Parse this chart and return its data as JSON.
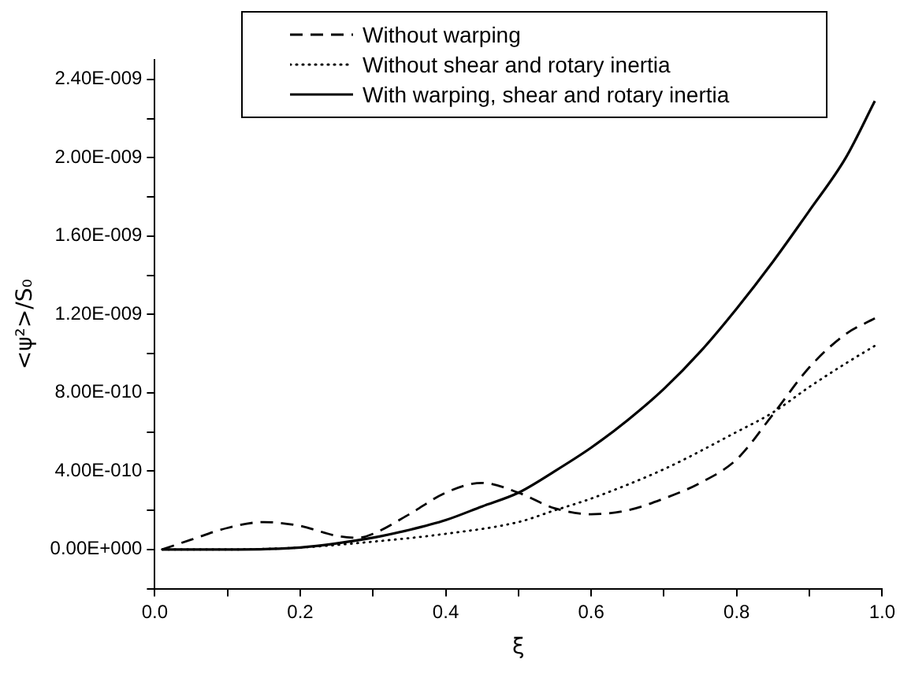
{
  "chart_data": {
    "type": "line",
    "xlabel": "ξ",
    "ylabel": "<ψ²>/S₀",
    "xlim": [
      0,
      1
    ],
    "ylim": [
      -2e-10,
      2.5e-09
    ],
    "xticks": [
      {
        "value": 0,
        "label": "0.0"
      },
      {
        "value": 0.1,
        "label": null
      },
      {
        "value": 0.2,
        "label": "0.2"
      },
      {
        "value": 0.3,
        "label": null
      },
      {
        "value": 0.4,
        "label": "0.4"
      },
      {
        "value": 0.5,
        "label": null
      },
      {
        "value": 0.6,
        "label": "0.6"
      },
      {
        "value": 0.7,
        "label": null
      },
      {
        "value": 0.8,
        "label": "0.8"
      },
      {
        "value": 0.9,
        "label": null
      },
      {
        "value": 1,
        "label": "1.0"
      }
    ],
    "yticks": [
      {
        "value": -2e-10,
        "label": null
      },
      {
        "value": 0,
        "label": "0.00E+000"
      },
      {
        "value": 2e-10,
        "label": null
      },
      {
        "value": 4e-10,
        "label": "4.00E-010"
      },
      {
        "value": 6e-10,
        "label": null
      },
      {
        "value": 8e-10,
        "label": "8.00E-010"
      },
      {
        "value": 1e-09,
        "label": null
      },
      {
        "value": 1.2e-09,
        "label": "1.20E-009"
      },
      {
        "value": 1.4e-09,
        "label": null
      },
      {
        "value": 1.6e-09,
        "label": "1.60E-009"
      },
      {
        "value": 1.8e-09,
        "label": null
      },
      {
        "value": 2e-09,
        "label": "2.00E-009"
      },
      {
        "value": 2.2e-09,
        "label": null
      },
      {
        "value": 2.4e-09,
        "label": "2.40E-009"
      }
    ],
    "grid": false,
    "legend": "top",
    "marker": "none",
    "series": [
      {
        "name": "Without warping",
        "color": "#000000",
        "line_style": "dashed",
        "x": [
          0.01,
          0.05,
          0.1,
          0.15,
          0.2,
          0.25,
          0.28,
          0.3,
          0.35,
          0.4,
          0.45,
          0.5,
          0.55,
          0.6,
          0.65,
          0.7,
          0.75,
          0.8,
          0.85,
          0.9,
          0.95,
          0.99
        ],
        "values": [
          0,
          5e-11,
          1.1e-10,
          1.4e-10,
          1.2e-10,
          7e-11,
          6e-11,
          8e-11,
          1.8e-10,
          2.9e-10,
          3.4e-10,
          2.9e-10,
          2.1e-10,
          1.8e-10,
          2e-10,
          2.6e-10,
          3.4e-10,
          4.6e-10,
          6.9e-10,
          9.3e-10,
          1.1e-09,
          1.18e-09
        ]
      },
      {
        "name": "Without shear and rotary inertia",
        "color": "#000000",
        "line_style": "dotted",
        "x": [
          0.01,
          0.1,
          0.2,
          0.3,
          0.4,
          0.5,
          0.55,
          0.6,
          0.7,
          0.8,
          0.85,
          0.9,
          0.95,
          0.99
        ],
        "values": [
          0,
          0,
          1e-11,
          4e-11,
          8e-11,
          1.4e-10,
          2e-10,
          2.6e-10,
          4.1e-10,
          6e-10,
          7e-10,
          8.3e-10,
          9.5e-10,
          1.04e-09
        ]
      },
      {
        "name": "With warping, shear and rotary inertia",
        "color": "#000000",
        "line_style": "solid",
        "x": [
          0.01,
          0.1,
          0.2,
          0.3,
          0.35,
          0.4,
          0.45,
          0.5,
          0.55,
          0.6,
          0.65,
          0.7,
          0.75,
          0.8,
          0.85,
          0.9,
          0.95,
          0.99
        ],
        "values": [
          0,
          0,
          1e-11,
          6e-11,
          1e-10,
          1.5e-10,
          2.2e-10,
          2.9e-10,
          4e-10,
          5.2e-10,
          6.6e-10,
          8.2e-10,
          1.01e-09,
          1.23e-09,
          1.47e-09,
          1.73e-09,
          2e-09,
          2.29e-09
        ]
      }
    ]
  }
}
